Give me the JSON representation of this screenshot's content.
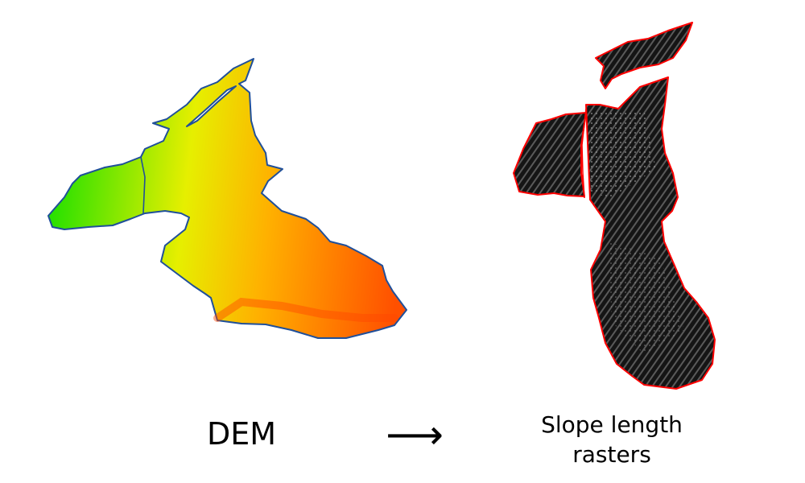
{
  "labels": {
    "dem": "DEM",
    "arrow": "⟶",
    "slope_line1": "Slope length",
    "slope_line2": "rasters"
  },
  "colors": {
    "dem_low": "#22e000",
    "dem_mid": "#eeee00",
    "dem_high": "#ff5a00",
    "dem_outline": "#1f4f9a",
    "raster_fill": "#141414",
    "raster_outline": "#ff0000"
  }
}
